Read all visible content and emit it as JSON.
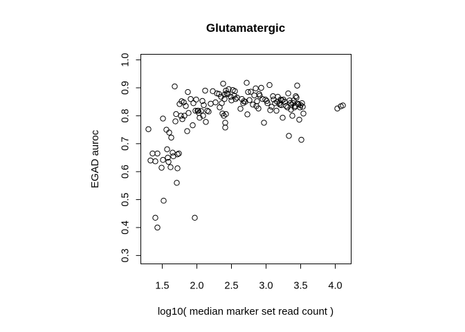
{
  "chart_data": {
    "type": "scatter",
    "title": "Glutamatergic",
    "xlabel": "log10( median marker set read count )",
    "ylabel": "EGAD auroc",
    "xlim": [
      1.19,
      4.23
    ],
    "ylim": [
      0.27,
      1.02
    ],
    "xticks": [
      1.5,
      2.0,
      2.5,
      3.0,
      3.5,
      4.0
    ],
    "xtick_labels": [
      "1.5",
      "2.0",
      "2.5",
      "3.0",
      "3.5",
      "4.0"
    ],
    "yticks": [
      0.3,
      0.4,
      0.5,
      0.6,
      0.7,
      0.8,
      0.9,
      1.0
    ],
    "ytick_labels": [
      "0.3",
      "0.4",
      "0.5",
      "0.6",
      "0.7",
      "0.8",
      "0.9",
      "1.0"
    ],
    "grid": false,
    "marker": "open-circle",
    "points": [
      [
        1.3,
        0.752
      ],
      [
        1.33,
        0.64
      ],
      [
        1.36,
        0.665
      ],
      [
        1.4,
        0.637
      ],
      [
        1.4,
        0.435
      ],
      [
        1.43,
        0.665
      ],
      [
        1.43,
        0.4
      ],
      [
        1.49,
        0.614
      ],
      [
        1.51,
        0.642
      ],
      [
        1.51,
        0.79
      ],
      [
        1.52,
        0.496
      ],
      [
        1.56,
        0.75
      ],
      [
        1.57,
        0.68
      ],
      [
        1.58,
        0.65
      ],
      [
        1.59,
        0.635
      ],
      [
        1.6,
        0.74
      ],
      [
        1.62,
        0.616
      ],
      [
        1.63,
        0.722
      ],
      [
        1.65,
        0.668
      ],
      [
        1.66,
        0.655
      ],
      [
        1.68,
        0.905
      ],
      [
        1.69,
        0.78
      ],
      [
        1.7,
        0.806
      ],
      [
        1.71,
        0.56
      ],
      [
        1.72,
        0.612
      ],
      [
        1.72,
        0.662
      ],
      [
        1.74,
        0.665
      ],
      [
        1.75,
        0.842
      ],
      [
        1.77,
        0.8
      ],
      [
        1.78,
        0.852
      ],
      [
        1.79,
        0.788
      ],
      [
        1.81,
        0.848
      ],
      [
        1.82,
        0.8
      ],
      [
        1.84,
        0.835
      ],
      [
        1.86,
        0.745
      ],
      [
        1.87,
        0.885
      ],
      [
        1.88,
        0.81
      ],
      [
        1.91,
        0.86
      ],
      [
        1.94,
        0.766
      ],
      [
        1.95,
        0.845
      ],
      [
        1.97,
        0.435
      ],
      [
        1.98,
        0.818
      ],
      [
        1.99,
        0.858
      ],
      [
        2.01,
        0.818
      ],
      [
        2.02,
        0.818
      ],
      [
        2.03,
        0.81
      ],
      [
        2.04,
        0.793
      ],
      [
        2.06,
        0.817
      ],
      [
        2.08,
        0.853
      ],
      [
        2.09,
        0.8
      ],
      [
        2.1,
        0.838
      ],
      [
        2.12,
        0.89
      ],
      [
        2.13,
        0.778
      ],
      [
        2.15,
        0.818
      ],
      [
        2.17,
        0.815
      ],
      [
        2.2,
        0.843
      ],
      [
        2.23,
        0.888
      ],
      [
        2.27,
        0.848
      ],
      [
        2.29,
        0.88
      ],
      [
        2.32,
        0.878
      ],
      [
        2.33,
        0.83
      ],
      [
        2.35,
        0.868
      ],
      [
        2.36,
        0.845
      ],
      [
        2.37,
        0.808
      ],
      [
        2.38,
        0.915
      ],
      [
        2.39,
        0.8
      ],
      [
        2.4,
        0.86
      ],
      [
        2.4,
        0.876
      ],
      [
        2.41,
        0.775
      ],
      [
        2.41,
        0.758
      ],
      [
        2.42,
        0.89
      ],
      [
        2.42,
        0.806
      ],
      [
        2.43,
        0.88
      ],
      [
        2.45,
        0.878
      ],
      [
        2.46,
        0.895
      ],
      [
        2.49,
        0.868
      ],
      [
        2.5,
        0.855
      ],
      [
        2.52,
        0.892
      ],
      [
        2.54,
        0.872
      ],
      [
        2.55,
        0.888
      ],
      [
        2.56,
        0.86
      ],
      [
        2.58,
        0.865
      ],
      [
        2.63,
        0.825
      ],
      [
        2.65,
        0.86
      ],
      [
        2.67,
        0.845
      ],
      [
        2.68,
        0.852
      ],
      [
        2.7,
        0.85
      ],
      [
        2.72,
        0.918
      ],
      [
        2.73,
        0.805
      ],
      [
        2.74,
        0.885
      ],
      [
        2.76,
        0.856
      ],
      [
        2.78,
        0.886
      ],
      [
        2.81,
        0.84
      ],
      [
        2.83,
        0.873
      ],
      [
        2.85,
        0.898
      ],
      [
        2.86,
        0.835
      ],
      [
        2.87,
        0.852
      ],
      [
        2.89,
        0.826
      ],
      [
        2.9,
        0.878
      ],
      [
        2.91,
        0.872
      ],
      [
        2.93,
        0.9
      ],
      [
        2.95,
        0.86
      ],
      [
        2.97,
        0.775
      ],
      [
        2.99,
        0.858
      ],
      [
        3.01,
        0.853
      ],
      [
        3.02,
        0.845
      ],
      [
        3.05,
        0.91
      ],
      [
        3.06,
        0.82
      ],
      [
        3.08,
        0.832
      ],
      [
        3.1,
        0.87
      ],
      [
        3.11,
        0.858
      ],
      [
        3.13,
        0.845
      ],
      [
        3.15,
        0.818
      ],
      [
        3.16,
        0.85
      ],
      [
        3.17,
        0.868
      ],
      [
        3.19,
        0.845
      ],
      [
        3.2,
        0.84
      ],
      [
        3.21,
        0.858
      ],
      [
        3.22,
        0.838
      ],
      [
        3.23,
        0.855
      ],
      [
        3.24,
        0.793
      ],
      [
        3.25,
        0.858
      ],
      [
        3.27,
        0.85
      ],
      [
        3.29,
        0.835
      ],
      [
        3.31,
        0.83
      ],
      [
        3.32,
        0.88
      ],
      [
        3.33,
        0.728
      ],
      [
        3.34,
        0.855
      ],
      [
        3.35,
        0.845
      ],
      [
        3.36,
        0.822
      ],
      [
        3.37,
        0.84
      ],
      [
        3.38,
        0.8
      ],
      [
        3.39,
        0.845
      ],
      [
        3.4,
        0.855
      ],
      [
        3.41,
        0.83
      ],
      [
        3.42,
        0.835
      ],
      [
        3.43,
        0.87
      ],
      [
        3.44,
        0.865
      ],
      [
        3.45,
        0.908
      ],
      [
        3.46,
        0.843
      ],
      [
        3.47,
        0.84
      ],
      [
        3.48,
        0.786
      ],
      [
        3.49,
        0.83
      ],
      [
        3.5,
        0.838
      ],
      [
        3.51,
        0.714
      ],
      [
        3.52,
        0.845
      ],
      [
        3.53,
        0.832
      ],
      [
        3.54,
        0.808
      ],
      [
        4.03,
        0.826
      ],
      [
        4.08,
        0.834
      ],
      [
        4.11,
        0.837
      ]
    ]
  }
}
